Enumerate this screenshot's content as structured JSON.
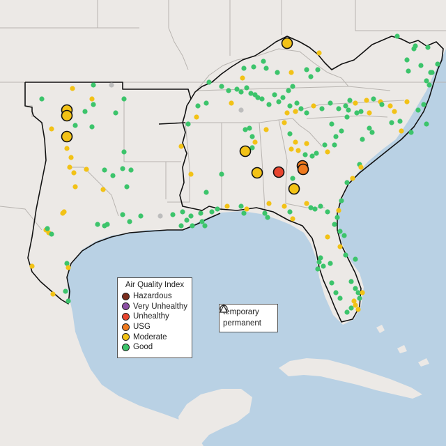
{
  "legend": {
    "title": "Air Quality Index",
    "categories": [
      {
        "label": "Hazardous",
        "color": "#7b2e1e"
      },
      {
        "label": "Very Unhealthy",
        "color": "#8b4fa3"
      },
      {
        "label": "Unhealthy",
        "color": "#e8452f"
      },
      {
        "label": "USG",
        "color": "#ef7a1f"
      },
      {
        "label": "Moderate",
        "color": "#f2c216"
      },
      {
        "label": "Good",
        "color": "#3cc46b"
      }
    ]
  },
  "shape_legend": {
    "temporary": "temporary",
    "permanent": "permanent"
  },
  "colors": {
    "land": "#ece9e6",
    "water": "#b9d1e4",
    "no_data": "#bdbdbd"
  }
}
